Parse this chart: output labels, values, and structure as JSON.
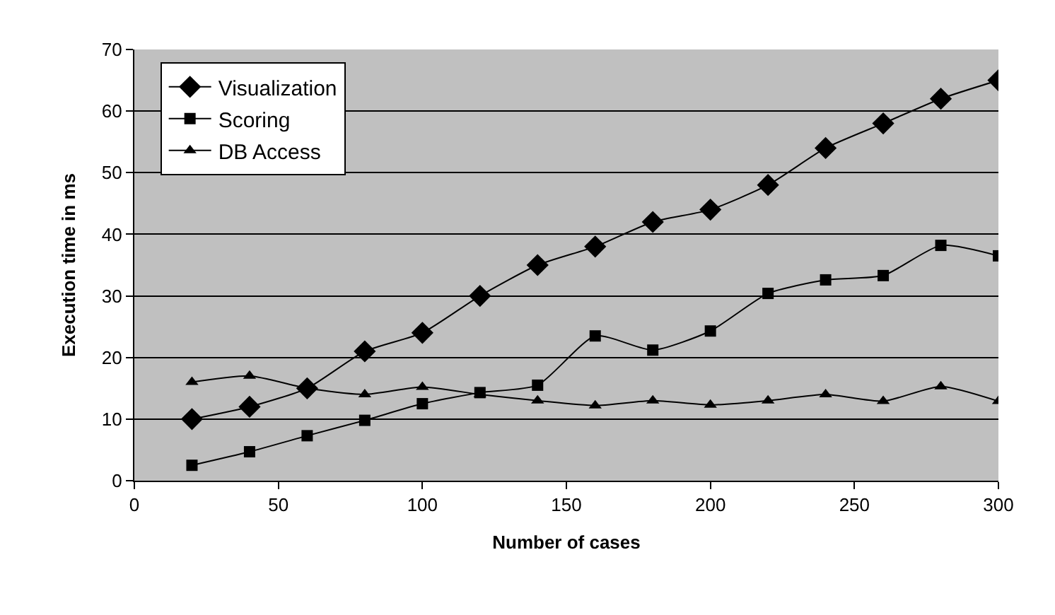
{
  "chart_data": {
    "type": "line",
    "xlabel": "Number of cases",
    "ylabel": "Execution time in ms",
    "x": [
      20,
      40,
      60,
      80,
      100,
      120,
      140,
      160,
      180,
      200,
      220,
      240,
      260,
      280,
      300
    ],
    "series": [
      {
        "name": "Visualization",
        "color": "#000000",
        "marker": "diamond",
        "values": [
          10,
          12,
          15,
          21,
          24,
          30,
          35,
          38,
          42,
          44,
          48,
          54,
          58,
          62,
          65
        ]
      },
      {
        "name": "Scoring",
        "color": "#000000",
        "marker": "square",
        "values": [
          2.5,
          4.7,
          7.3,
          9.8,
          12.5,
          14.3,
          15.5,
          23.5,
          21.2,
          24.3,
          30.4,
          32.6,
          33.3,
          38.2,
          36.5
        ]
      },
      {
        "name": "DB Access",
        "color": "#000000",
        "marker": "triangle",
        "values": [
          16,
          17,
          15,
          14,
          15.2,
          14,
          13,
          12.2,
          13,
          12.3,
          13,
          14,
          12.9,
          15.3,
          12.9
        ]
      }
    ],
    "xlim": [
      0,
      300
    ],
    "xticks": [
      0,
      50,
      100,
      150,
      200,
      250,
      300
    ],
    "ylim": [
      0,
      70
    ],
    "yticks": [
      0,
      10,
      20,
      30,
      40,
      50,
      60,
      70
    ],
    "grid": "y",
    "legend": "top left",
    "line_style": "solid"
  }
}
